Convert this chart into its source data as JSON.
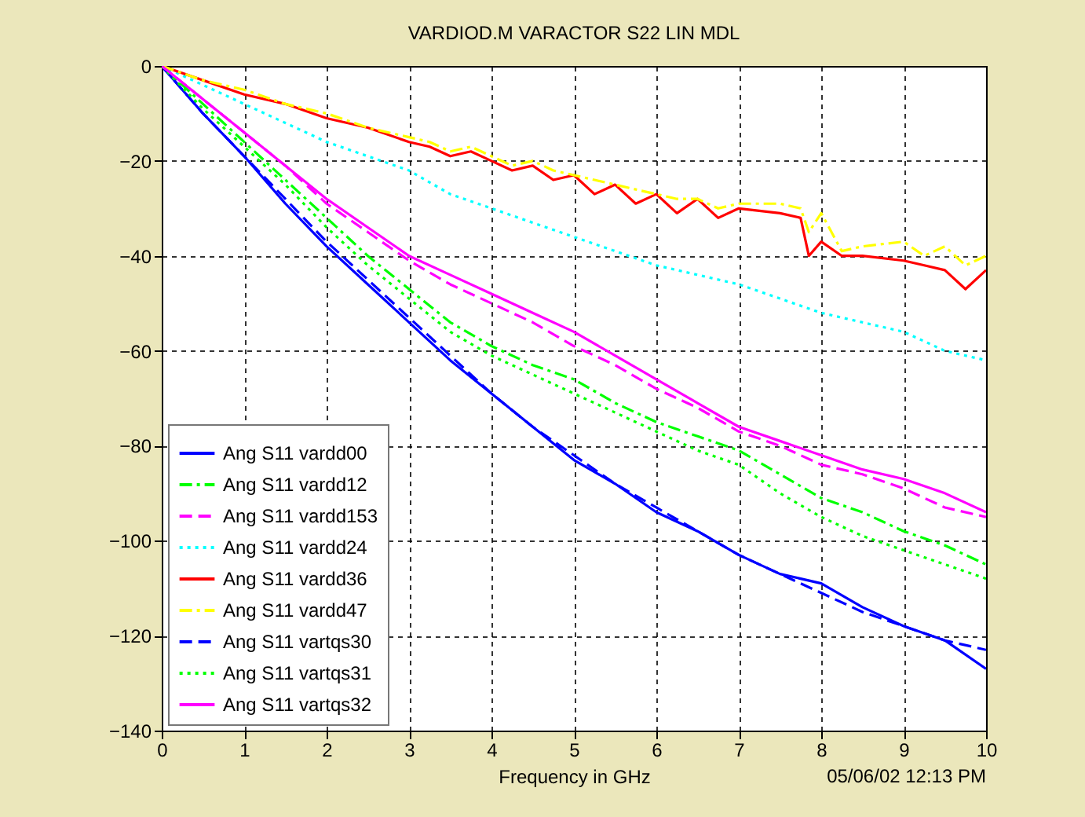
{
  "chart_data": {
    "type": "line",
    "title": "VARDIOD.M   VARACTOR S22 LIN MDL",
    "xlabel": "Frequency in GHz",
    "annotations": [
      "05/06/02 12:13 PM"
    ],
    "xlim": [
      0,
      10
    ],
    "ylim": [
      -140,
      0
    ],
    "xticks": [
      0,
      1,
      2,
      3,
      4,
      5,
      6,
      7,
      8,
      9,
      10
    ],
    "yticks": [
      -140,
      -120,
      -100,
      -80,
      -60,
      -40,
      -20,
      0
    ],
    "grid": true,
    "legend": "bottom left",
    "series": [
      {
        "name": "Ang S11 vardd00",
        "color": "#0000ff",
        "line_style": "solid",
        "x": [
          0,
          0.5,
          1,
          1.5,
          2,
          2.5,
          3,
          3.5,
          4,
          4.5,
          5,
          5.5,
          6,
          6.5,
          7,
          7.5,
          8,
          8.5,
          9,
          9.5,
          10
        ],
        "values": [
          0,
          -10,
          -19,
          -29,
          -38,
          -46,
          -54,
          -62,
          -69,
          -76,
          -83,
          -88,
          -94,
          -98,
          -103,
          -107,
          -109,
          -114,
          -118,
          -121,
          -127
        ]
      },
      {
        "name": "Ang S11 vardd12",
        "color": "#00ff00",
        "line_style": "dashdot",
        "x": [
          0,
          0.5,
          1,
          1.5,
          2,
          2.5,
          3,
          3.5,
          4,
          4.5,
          5,
          5.5,
          6,
          6.5,
          7,
          7.5,
          8,
          8.5,
          9,
          9.5,
          10
        ],
        "values": [
          0,
          -8,
          -16,
          -24,
          -32,
          -40,
          -47,
          -54,
          -59,
          -63,
          -66,
          -71,
          -75,
          -78,
          -81,
          -86,
          -91,
          -94,
          -98,
          -101,
          -105
        ]
      },
      {
        "name": "Ang S11 vardd153",
        "color": "#ff00ff",
        "line_style": "dashed",
        "x": [
          0,
          0.5,
          1,
          1.5,
          2,
          2.5,
          3,
          3.5,
          4,
          4.5,
          5,
          5.5,
          6,
          6.5,
          7,
          7.5,
          8,
          8.5,
          9,
          9.5,
          10
        ],
        "values": [
          0,
          -7,
          -14,
          -21,
          -29,
          -35,
          -41,
          -46,
          -50,
          -54,
          -59,
          -63,
          -68,
          -72,
          -77,
          -80,
          -84,
          -86,
          -89,
          -93,
          -95
        ]
      },
      {
        "name": "Ang S11 vardd24",
        "color": "#00ffff",
        "line_style": "dotted",
        "x": [
          0,
          0.5,
          1,
          1.5,
          2,
          2.5,
          3,
          3.5,
          4,
          4.5,
          5,
          5.5,
          6,
          6.5,
          7,
          7.5,
          8,
          8.5,
          9,
          9.5,
          10
        ],
        "values": [
          0,
          -4,
          -8,
          -12,
          -16,
          -19,
          -22,
          -27,
          -30,
          -33,
          -36,
          -39,
          -42,
          -44,
          -46,
          -49,
          -52,
          -54,
          -56,
          -60,
          -62
        ]
      },
      {
        "name": "Ang S11 vardd36",
        "color": "#ff0000",
        "line_style": "solid",
        "x": [
          0,
          0.5,
          1,
          1.5,
          2,
          2.5,
          3,
          3.25,
          3.5,
          3.75,
          4,
          4.25,
          4.5,
          4.75,
          5,
          5.25,
          5.5,
          5.75,
          6,
          6.25,
          6.5,
          6.75,
          7,
          7.5,
          7.75,
          7.85,
          8,
          8.25,
          8.5,
          9,
          9.25,
          9.5,
          9.75,
          10
        ],
        "values": [
          0,
          -3,
          -6,
          -8,
          -11,
          -13,
          -16,
          -17,
          -19,
          -18,
          -20,
          -22,
          -21,
          -24,
          -23,
          -27,
          -25,
          -29,
          -27,
          -31,
          -28,
          -32,
          -30,
          -31,
          -32,
          -40,
          -37,
          -40,
          -40,
          -41,
          -42,
          -43,
          -47,
          -43
        ]
      },
      {
        "name": "Ang S11 vardd47",
        "color": "#ffff00",
        "line_style": "dashdot",
        "x": [
          0,
          0.5,
          1,
          1.5,
          2,
          2.5,
          3,
          3.25,
          3.5,
          3.75,
          4,
          4.25,
          4.5,
          4.75,
          5,
          5.25,
          5.5,
          5.75,
          6,
          6.25,
          6.5,
          6.75,
          7,
          7.5,
          7.75,
          7.85,
          8,
          8.25,
          8.5,
          9,
          9.25,
          9.5,
          9.75,
          10
        ],
        "values": [
          0,
          -3,
          -5,
          -8,
          -10,
          -13,
          -15,
          -16,
          -18,
          -17,
          -19,
          -21,
          -20,
          -22,
          -23,
          -24,
          -25,
          -26,
          -27,
          -28,
          -28,
          -30,
          -29,
          -29,
          -30,
          -35,
          -31,
          -39,
          -38,
          -37,
          -40,
          -38,
          -42,
          -40
        ]
      },
      {
        "name": "Ang S11 vartqs30",
        "color": "#0000ff",
        "line_style": "dashed",
        "x": [
          0,
          0.5,
          1,
          1.5,
          2,
          2.5,
          3,
          3.5,
          4,
          4.5,
          5,
          5.5,
          6,
          6.5,
          7,
          7.5,
          8,
          8.5,
          9,
          9.5,
          10
        ],
        "values": [
          0,
          -10,
          -19,
          -28,
          -37,
          -45,
          -53,
          -61,
          -69,
          -76,
          -82,
          -88,
          -93,
          -98,
          -103,
          -107,
          -111,
          -115,
          -118,
          -121,
          -123
        ]
      },
      {
        "name": "Ang S11 vartqs31",
        "color": "#00ff00",
        "line_style": "dotted",
        "x": [
          0,
          0.5,
          1,
          1.5,
          2,
          2.5,
          3,
          3.5,
          4,
          4.5,
          5,
          5.5,
          6,
          6.5,
          7,
          7.5,
          8,
          8.5,
          9,
          9.5,
          10
        ],
        "values": [
          0,
          -9,
          -17,
          -25,
          -34,
          -42,
          -49,
          -56,
          -61,
          -65,
          -69,
          -73,
          -77,
          -81,
          -84,
          -90,
          -95,
          -99,
          -102,
          -105,
          -108
        ]
      },
      {
        "name": "Ang S11 vartqs32",
        "color": "#ff00ff",
        "line_style": "solid",
        "x": [
          0,
          0.5,
          1,
          1.5,
          2,
          2.5,
          3,
          3.5,
          4,
          4.5,
          5,
          5.5,
          6,
          6.5,
          7,
          7.5,
          8,
          8.5,
          9,
          9.5,
          10
        ],
        "values": [
          0,
          -7,
          -14,
          -21,
          -28,
          -34,
          -40,
          -44,
          -48,
          -52,
          -56,
          -61,
          -66,
          -71,
          -76,
          -79,
          -82,
          -85,
          -87,
          -90,
          -94
        ]
      }
    ]
  }
}
